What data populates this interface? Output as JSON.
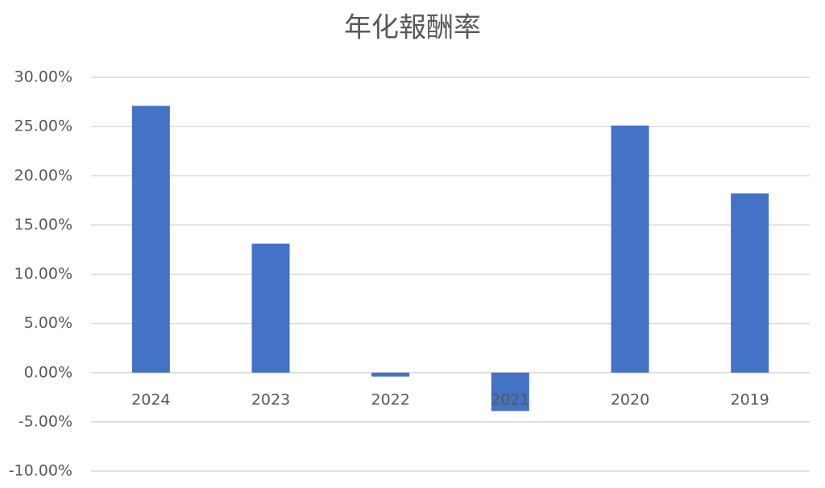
{
  "chart_data": {
    "type": "bar",
    "title": "年化報酬率",
    "categories": [
      "2024",
      "2023",
      "2022",
      "2021",
      "2020",
      "2019"
    ],
    "values": [
      27.1,
      13.1,
      -0.4,
      -3.9,
      25.1,
      18.2
    ],
    "color": "#4472c4",
    "ylim": [
      -10,
      30
    ],
    "yticks": [
      {
        "value": -10,
        "label": "-10.00%"
      },
      {
        "value": -5,
        "label": "-5.00%"
      },
      {
        "value": 0,
        "label": "0.00%"
      },
      {
        "value": 5,
        "label": "5.00%"
      },
      {
        "value": 10,
        "label": "10.00%"
      },
      {
        "value": 15,
        "label": "15.00%"
      },
      {
        "value": 20,
        "label": "20.00%"
      },
      {
        "value": 25,
        "label": "25.00%"
      },
      {
        "value": 30,
        "label": "30.00%"
      }
    ],
    "grid": true
  }
}
